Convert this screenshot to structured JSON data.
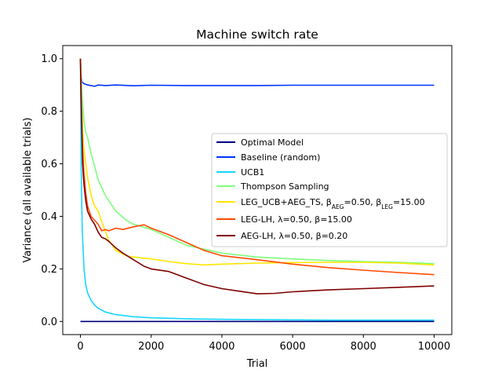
{
  "chart_data": {
    "type": "line",
    "title": "Machine switch rate",
    "xlabel": "Trial",
    "ylabel": "Variance (all available trials)",
    "xlim": [
      -500,
      10500
    ],
    "ylim": [
      -0.05,
      1.05
    ],
    "xticks": [
      0,
      2000,
      4000,
      6000,
      8000,
      10000
    ],
    "yticks": [
      0.0,
      0.2,
      0.4,
      0.6,
      0.8,
      1.0
    ],
    "xtick_labels": [
      "0",
      "2000",
      "4000",
      "6000",
      "8000",
      "10000"
    ],
    "ytick_labels": [
      "0.0",
      "0.2",
      "0.4",
      "0.6",
      "0.8",
      "1.0"
    ],
    "grid": false,
    "legend_position": "center-right",
    "series": [
      {
        "name": "Optimal Model",
        "color": "#00007f",
        "x": [
          0,
          2000,
          4000,
          6000,
          8000,
          10000
        ],
        "y": [
          0.0,
          0.0,
          0.0,
          0.0,
          0.0,
          0.0
        ]
      },
      {
        "name": "Baseline (random)",
        "color": "#0034ff",
        "x": [
          0,
          20,
          50,
          100,
          200,
          300,
          400,
          500,
          700,
          1000,
          1500,
          2000,
          3000,
          4000,
          5000,
          6000,
          7000,
          8000,
          9000,
          10000
        ],
        "y": [
          1.0,
          0.93,
          0.91,
          0.905,
          0.9,
          0.898,
          0.895,
          0.9,
          0.898,
          0.9,
          0.897,
          0.899,
          0.898,
          0.898,
          0.898,
          0.899,
          0.899,
          0.899,
          0.899,
          0.899
        ]
      },
      {
        "name": "UCB1",
        "color": "#18d6ff",
        "x": [
          0,
          20,
          50,
          100,
          150,
          200,
          300,
          400,
          500,
          700,
          1000,
          1500,
          2000,
          3000,
          4000,
          5000,
          6000,
          7000,
          8000,
          9000,
          10000
        ],
        "y": [
          1.0,
          0.6,
          0.35,
          0.2,
          0.14,
          0.11,
          0.08,
          0.062,
          0.05,
          0.036,
          0.026,
          0.018,
          0.014,
          0.01,
          0.008,
          0.007,
          0.006,
          0.005,
          0.005,
          0.005,
          0.005
        ]
      },
      {
        "name": "Thompson Sampling",
        "color": "#7dff7a",
        "x": [
          0,
          50,
          100,
          150,
          200,
          300,
          400,
          500,
          700,
          1000,
          1300,
          1500,
          2000,
          2500,
          3000,
          3500,
          4000,
          5000,
          6000,
          7000,
          8000,
          9000,
          10000
        ],
        "y": [
          1.0,
          0.85,
          0.76,
          0.72,
          0.7,
          0.64,
          0.59,
          0.54,
          0.48,
          0.42,
          0.385,
          0.37,
          0.35,
          0.32,
          0.29,
          0.275,
          0.26,
          0.245,
          0.238,
          0.232,
          0.228,
          0.225,
          0.22
        ]
      },
      {
        "name": "LEG_UCB+AEG_TS, $\\beta_{AEG}=0.50, \\beta_{LEG}=15.00$",
        "color": "#ffe600",
        "x": [
          0,
          30,
          60,
          100,
          150,
          200,
          300,
          400,
          500,
          600,
          800,
          1000,
          1300,
          1500,
          2000,
          2500,
          3000,
          3500,
          4000,
          5000,
          6000,
          7000,
          8000,
          9000,
          10000
        ],
        "y": [
          1.0,
          0.85,
          0.73,
          0.65,
          0.6,
          0.55,
          0.48,
          0.44,
          0.42,
          0.38,
          0.31,
          0.27,
          0.25,
          0.245,
          0.238,
          0.228,
          0.22,
          0.215,
          0.218,
          0.222,
          0.224,
          0.225,
          0.225,
          0.222,
          0.215
        ]
      },
      {
        "name": "LEG-LH, $\\lambda=0.50, \\beta=15.00$",
        "color": "#ff4a00",
        "x": [
          0,
          30,
          60,
          100,
          150,
          200,
          300,
          400,
          500,
          600,
          700,
          800,
          1000,
          1200,
          1500,
          1800,
          2000,
          2500,
          3000,
          3500,
          4000,
          5000,
          6000,
          7000,
          8000,
          9000,
          10000
        ],
        "y": [
          1.0,
          0.8,
          0.66,
          0.56,
          0.49,
          0.44,
          0.4,
          0.385,
          0.37,
          0.345,
          0.35,
          0.345,
          0.355,
          0.35,
          0.36,
          0.368,
          0.355,
          0.33,
          0.3,
          0.27,
          0.25,
          0.235,
          0.218,
          0.205,
          0.195,
          0.186,
          0.178
        ]
      },
      {
        "name": "AEG-LH, $\\lambda=0.50, \\beta=0.20$",
        "color": "#7f0000",
        "x": [
          0,
          30,
          60,
          100,
          150,
          200,
          300,
          400,
          500,
          600,
          700,
          800,
          1000,
          1200,
          1500,
          1800,
          2000,
          2500,
          3000,
          3500,
          4000,
          4500,
          5000,
          5500,
          6000,
          7000,
          8000,
          9000,
          10000
        ],
        "y": [
          1.0,
          0.78,
          0.6,
          0.52,
          0.46,
          0.42,
          0.39,
          0.37,
          0.34,
          0.32,
          0.315,
          0.305,
          0.28,
          0.26,
          0.235,
          0.21,
          0.2,
          0.19,
          0.165,
          0.14,
          0.125,
          0.115,
          0.105,
          0.107,
          0.113,
          0.12,
          0.125,
          0.13,
          0.135
        ]
      }
    ]
  }
}
